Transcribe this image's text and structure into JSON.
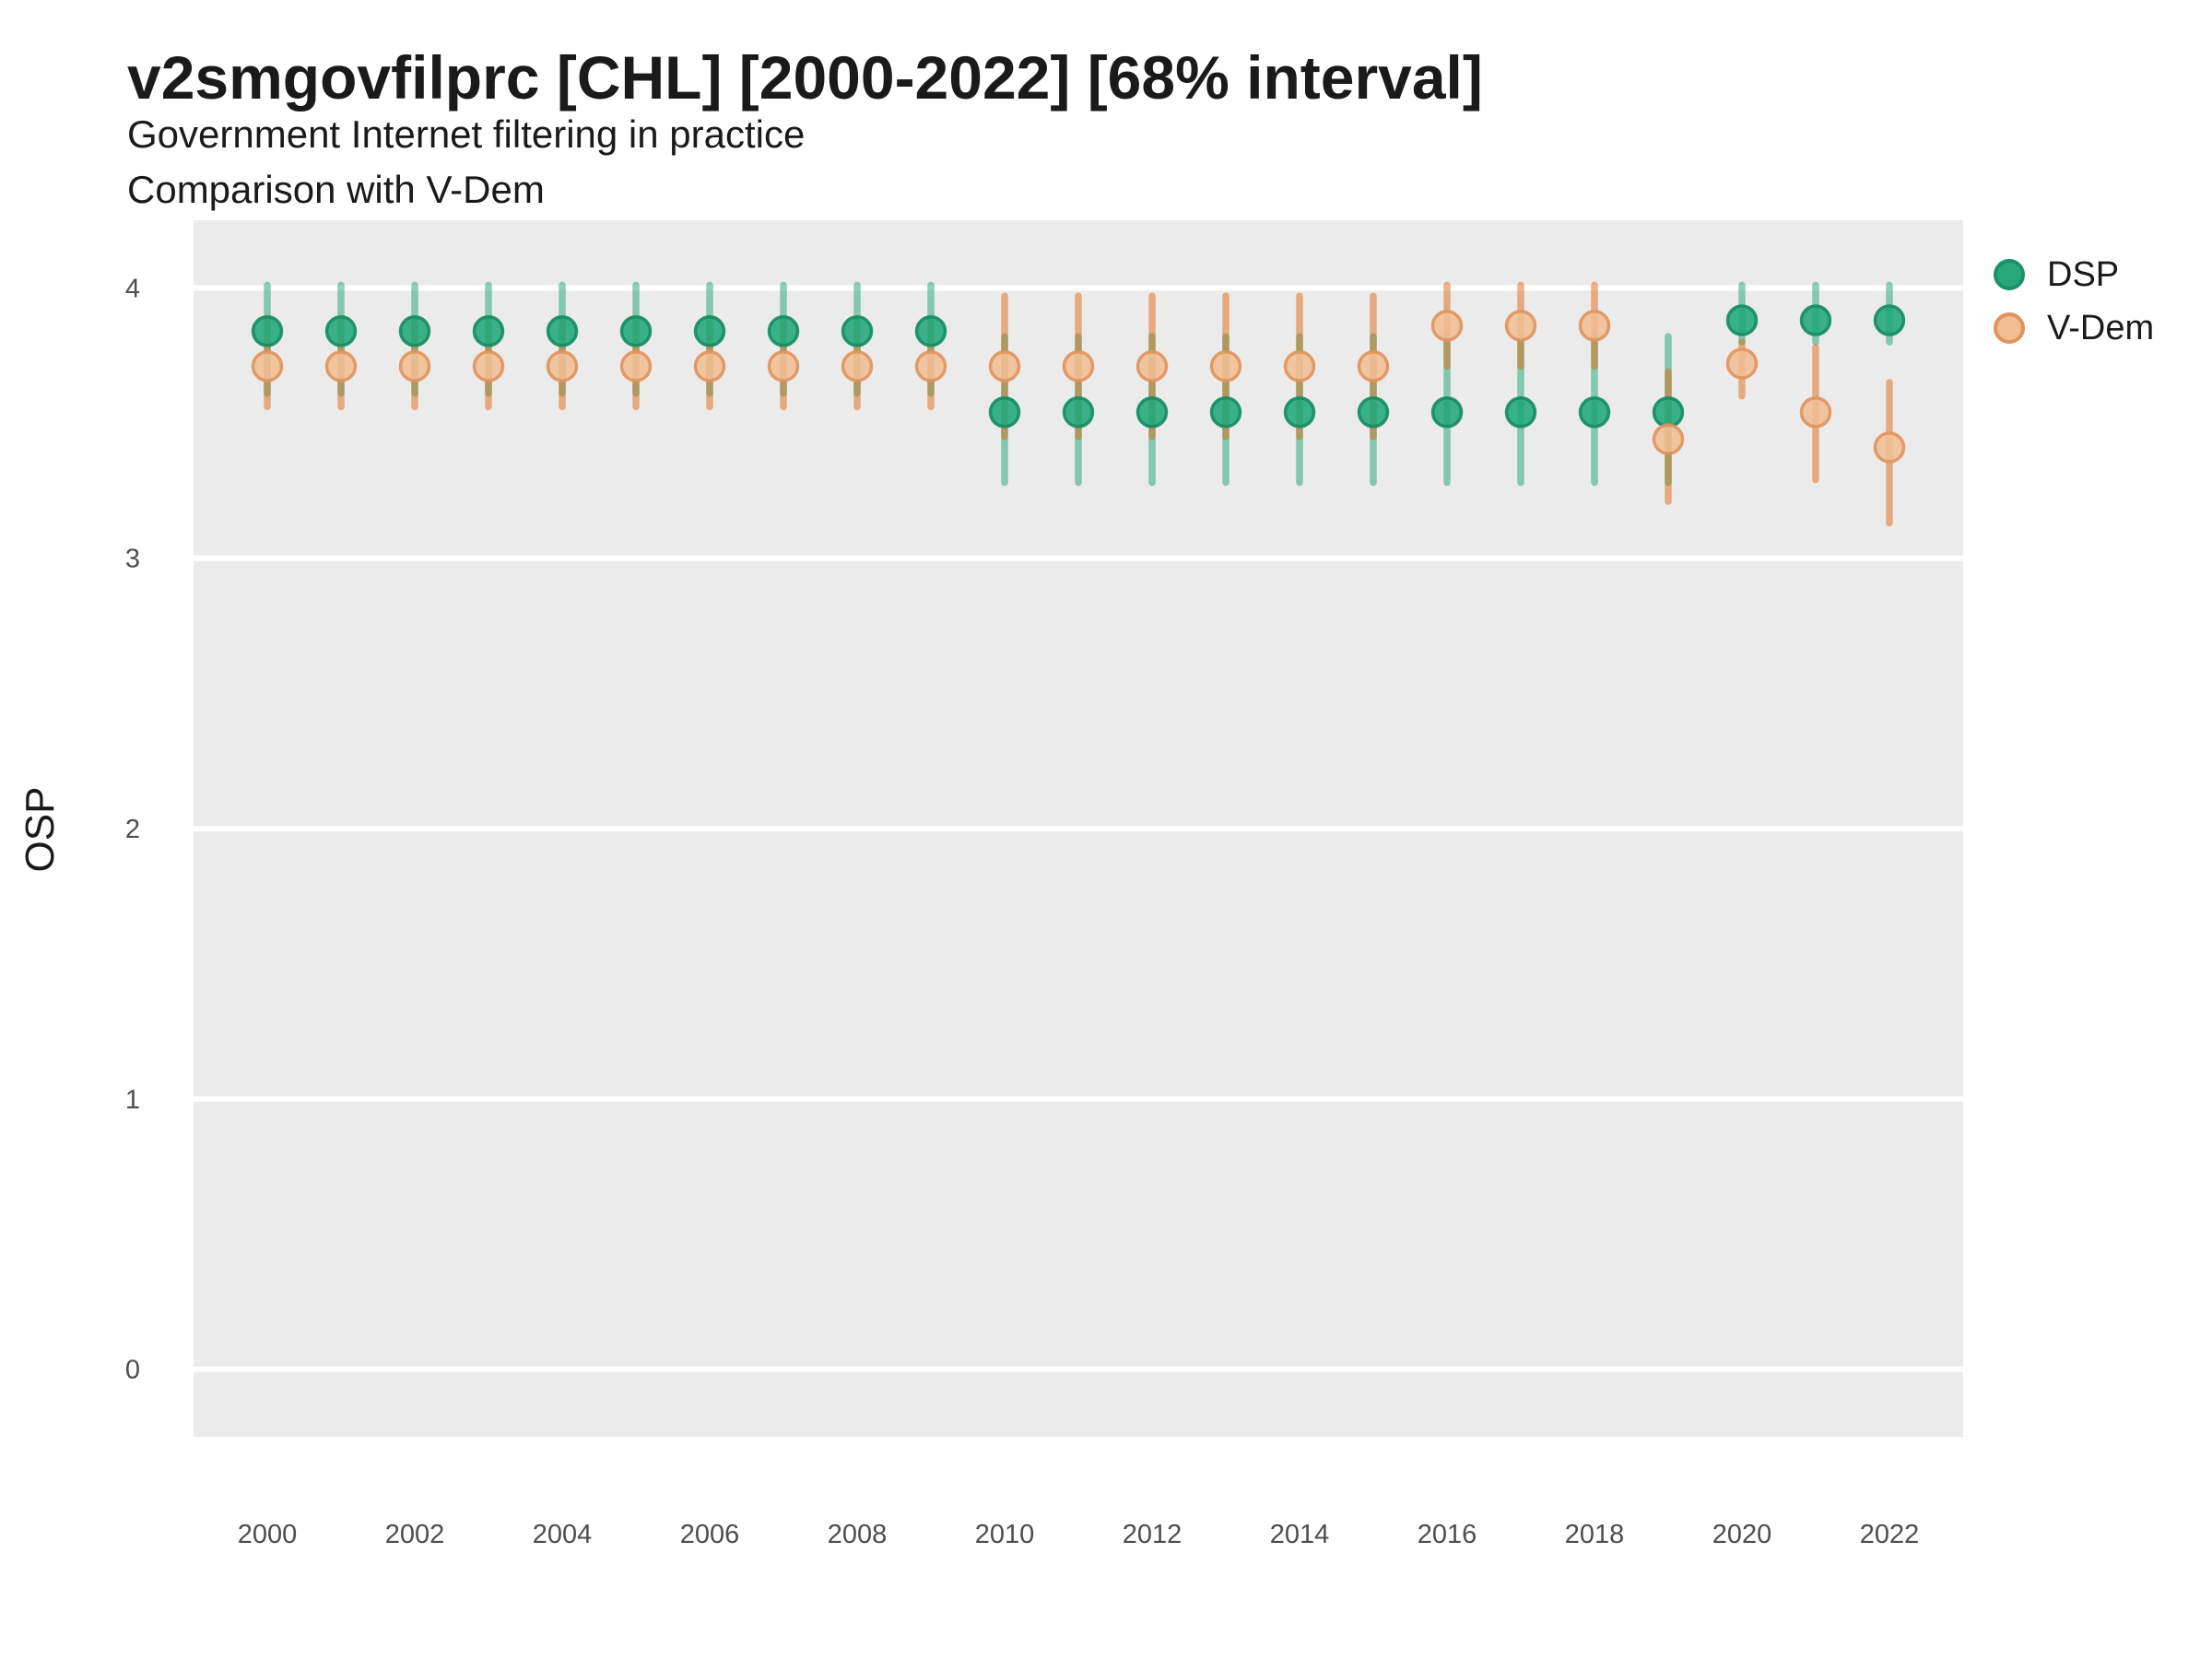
{
  "header": {
    "title": "v2smgovfilprc [CHL] [2000-2022] [68% interval]",
    "subtitle1": "Government Internet filtering in practice",
    "subtitle2": "Comparison with V-Dem"
  },
  "legend": {
    "items": [
      {
        "label": "DSP",
        "fill": "#26a87b",
        "stroke": "#1b9166"
      },
      {
        "label": "V-Dem",
        "fill": "#f0be93",
        "stroke": "#e0935c"
      }
    ]
  },
  "axes": {
    "y_label": "OSP",
    "y_ticks": [
      "0",
      "1",
      "2",
      "3",
      "4"
    ],
    "y_tick_values": [
      0,
      1,
      2,
      3,
      4
    ],
    "x_ticks": [
      "2000",
      "2002",
      "2004",
      "2006",
      "2008",
      "2010",
      "2012",
      "2014",
      "2016",
      "2018",
      "2020",
      "2022"
    ],
    "x_tick_values": [
      2000,
      2002,
      2004,
      2006,
      2008,
      2010,
      2012,
      2014,
      2016,
      2018,
      2020,
      2022
    ]
  },
  "colors": {
    "panel_bg": "#ebebeb",
    "gridline": "#ffffff",
    "tick_label": "#4d4d4d",
    "dsp_bar": "rgba(25,163,113,0.5)",
    "dsp_point_fill": "#21a77a",
    "dsp_point_stroke": "#148c62",
    "vdem_bar": "rgba(224,105,20,0.5)",
    "vdem_point_fill": "#f0be93",
    "vdem_point_stroke": "#e0935c"
  },
  "chart_data": {
    "type": "pointrange-scatter",
    "title": "v2smgovfilprc [CHL] [2000-2022] [68% interval]",
    "subtitle": "Government Internet filtering in practice — Comparison with V-Dem",
    "xlabel": "",
    "ylabel": "OSP",
    "ylim": [
      -0.25,
      4.25
    ],
    "x": [
      2000,
      2001,
      2002,
      2003,
      2004,
      2005,
      2006,
      2007,
      2008,
      2009,
      2010,
      2011,
      2012,
      2013,
      2014,
      2015,
      2016,
      2017,
      2018,
      2019,
      2020,
      2021,
      2022
    ],
    "interval": "68%",
    "grid": "horizontal-major-only",
    "legend_position": "right-top",
    "series": [
      {
        "name": "DSP",
        "points": [
          {
            "year": 2000,
            "est": 3.84,
            "lo": 3.61,
            "hi": 4.01
          },
          {
            "year": 2001,
            "est": 3.84,
            "lo": 3.61,
            "hi": 4.01
          },
          {
            "year": 2002,
            "est": 3.84,
            "lo": 3.61,
            "hi": 4.01
          },
          {
            "year": 2003,
            "est": 3.84,
            "lo": 3.61,
            "hi": 4.01
          },
          {
            "year": 2004,
            "est": 3.84,
            "lo": 3.61,
            "hi": 4.01
          },
          {
            "year": 2005,
            "est": 3.84,
            "lo": 3.61,
            "hi": 4.01
          },
          {
            "year": 2006,
            "est": 3.84,
            "lo": 3.61,
            "hi": 4.01
          },
          {
            "year": 2007,
            "est": 3.84,
            "lo": 3.61,
            "hi": 4.01
          },
          {
            "year": 2008,
            "est": 3.84,
            "lo": 3.61,
            "hi": 4.01
          },
          {
            "year": 2009,
            "est": 3.84,
            "lo": 3.61,
            "hi": 4.01
          },
          {
            "year": 2010,
            "est": 3.54,
            "lo": 3.28,
            "hi": 3.82
          },
          {
            "year": 2011,
            "est": 3.54,
            "lo": 3.28,
            "hi": 3.82
          },
          {
            "year": 2012,
            "est": 3.54,
            "lo": 3.28,
            "hi": 3.82
          },
          {
            "year": 2013,
            "est": 3.54,
            "lo": 3.28,
            "hi": 3.82
          },
          {
            "year": 2014,
            "est": 3.54,
            "lo": 3.28,
            "hi": 3.82
          },
          {
            "year": 2015,
            "est": 3.54,
            "lo": 3.28,
            "hi": 3.82
          },
          {
            "year": 2016,
            "est": 3.54,
            "lo": 3.28,
            "hi": 3.82
          },
          {
            "year": 2017,
            "est": 3.54,
            "lo": 3.28,
            "hi": 3.82
          },
          {
            "year": 2018,
            "est": 3.54,
            "lo": 3.28,
            "hi": 3.82
          },
          {
            "year": 2019,
            "est": 3.54,
            "lo": 3.28,
            "hi": 3.82
          },
          {
            "year": 2020,
            "est": 3.88,
            "lo": 3.8,
            "hi": 4.01
          },
          {
            "year": 2021,
            "est": 3.88,
            "lo": 3.8,
            "hi": 4.01
          },
          {
            "year": 2022,
            "est": 3.88,
            "lo": 3.8,
            "hi": 4.01
          }
        ]
      },
      {
        "name": "V-Dem",
        "points": [
          {
            "year": 2000,
            "est": 3.71,
            "lo": 3.56,
            "hi": 3.88
          },
          {
            "year": 2001,
            "est": 3.71,
            "lo": 3.56,
            "hi": 3.88
          },
          {
            "year": 2002,
            "est": 3.71,
            "lo": 3.56,
            "hi": 3.88
          },
          {
            "year": 2003,
            "est": 3.71,
            "lo": 3.56,
            "hi": 3.88
          },
          {
            "year": 2004,
            "est": 3.71,
            "lo": 3.56,
            "hi": 3.88
          },
          {
            "year": 2005,
            "est": 3.71,
            "lo": 3.56,
            "hi": 3.88
          },
          {
            "year": 2006,
            "est": 3.71,
            "lo": 3.56,
            "hi": 3.88
          },
          {
            "year": 2007,
            "est": 3.71,
            "lo": 3.56,
            "hi": 3.88
          },
          {
            "year": 2008,
            "est": 3.71,
            "lo": 3.56,
            "hi": 3.88
          },
          {
            "year": 2009,
            "est": 3.71,
            "lo": 3.56,
            "hi": 3.88
          },
          {
            "year": 2010,
            "est": 3.71,
            "lo": 3.45,
            "hi": 3.97
          },
          {
            "year": 2011,
            "est": 3.71,
            "lo": 3.45,
            "hi": 3.97
          },
          {
            "year": 2012,
            "est": 3.71,
            "lo": 3.45,
            "hi": 3.97
          },
          {
            "year": 2013,
            "est": 3.71,
            "lo": 3.45,
            "hi": 3.97
          },
          {
            "year": 2014,
            "est": 3.71,
            "lo": 3.45,
            "hi": 3.97
          },
          {
            "year": 2015,
            "est": 3.71,
            "lo": 3.45,
            "hi": 3.97
          },
          {
            "year": 2016,
            "est": 3.86,
            "lo": 3.71,
            "hi": 4.01
          },
          {
            "year": 2017,
            "est": 3.86,
            "lo": 3.71,
            "hi": 4.01
          },
          {
            "year": 2018,
            "est": 3.86,
            "lo": 3.71,
            "hi": 4.01
          },
          {
            "year": 2019,
            "est": 3.44,
            "lo": 3.21,
            "hi": 3.69
          },
          {
            "year": 2020,
            "est": 3.72,
            "lo": 3.6,
            "hi": 3.8
          },
          {
            "year": 2021,
            "est": 3.54,
            "lo": 3.29,
            "hi": 3.78
          },
          {
            "year": 2022,
            "est": 3.41,
            "lo": 3.13,
            "hi": 3.65
          }
        ]
      }
    ]
  }
}
